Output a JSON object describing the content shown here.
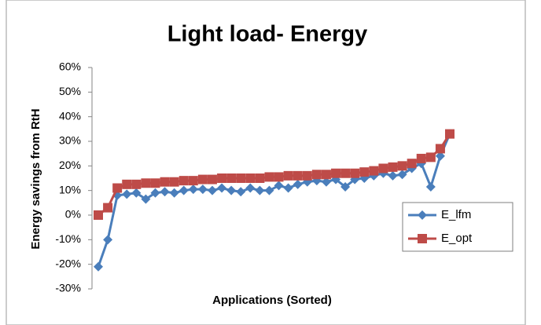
{
  "chart_data": {
    "type": "line",
    "title": "Light load- Energy",
    "y_label": "Energy savings from RtH",
    "x_label": "Applications (Sorted)",
    "categories": [
      null,
      null,
      null,
      null,
      null,
      null,
      null,
      null,
      null,
      null,
      null,
      null,
      null,
      null,
      null,
      null,
      null,
      null,
      null,
      null,
      null,
      null,
      null,
      null,
      null,
      null,
      null,
      null,
      null,
      null,
      null,
      null,
      null,
      null,
      null,
      null,
      null,
      null
    ],
    "series": [
      {
        "name": "E_lfm",
        "color": "#4a7ebb",
        "marker": "diamond",
        "values": [
          -21,
          -10,
          8,
          8.5,
          9,
          6.5,
          9,
          9.5,
          9,
          10,
          10.5,
          10.5,
          10,
          11,
          10,
          9.5,
          11,
          10,
          10,
          12,
          11,
          12.5,
          13.5,
          14,
          13.5,
          14.5,
          11.5,
          14.5,
          15,
          16,
          17,
          16,
          16.5,
          19,
          21,
          11.5,
          24,
          33
        ]
      },
      {
        "name": "E_opt",
        "color": "#be4b48",
        "marker": "square",
        "values": [
          0,
          3,
          11,
          12.5,
          12.5,
          13,
          13,
          13.5,
          13.5,
          14,
          14,
          14.5,
          14.5,
          15,
          15,
          15,
          15,
          15,
          15.5,
          15.5,
          16,
          16,
          16,
          16.5,
          16.5,
          17,
          17,
          17,
          17.5,
          18,
          19,
          19.5,
          20,
          21,
          23,
          23.5,
          27,
          33
        ]
      }
    ],
    "ylim": [
      -30,
      60
    ],
    "yticks": [
      {
        "value": -30,
        "label": "-30%"
      },
      {
        "value": -20,
        "label": "-20%"
      },
      {
        "value": -10,
        "label": "-10%"
      },
      {
        "value": 0,
        "label": "0%"
      },
      {
        "value": 10,
        "label": "10%"
      },
      {
        "value": 20,
        "label": "20%"
      },
      {
        "value": 30,
        "label": "30%"
      },
      {
        "value": 40,
        "label": "40%"
      },
      {
        "value": 50,
        "label": "50%"
      },
      {
        "value": 60,
        "label": "60%"
      }
    ],
    "grid": false,
    "legend": "right"
  }
}
